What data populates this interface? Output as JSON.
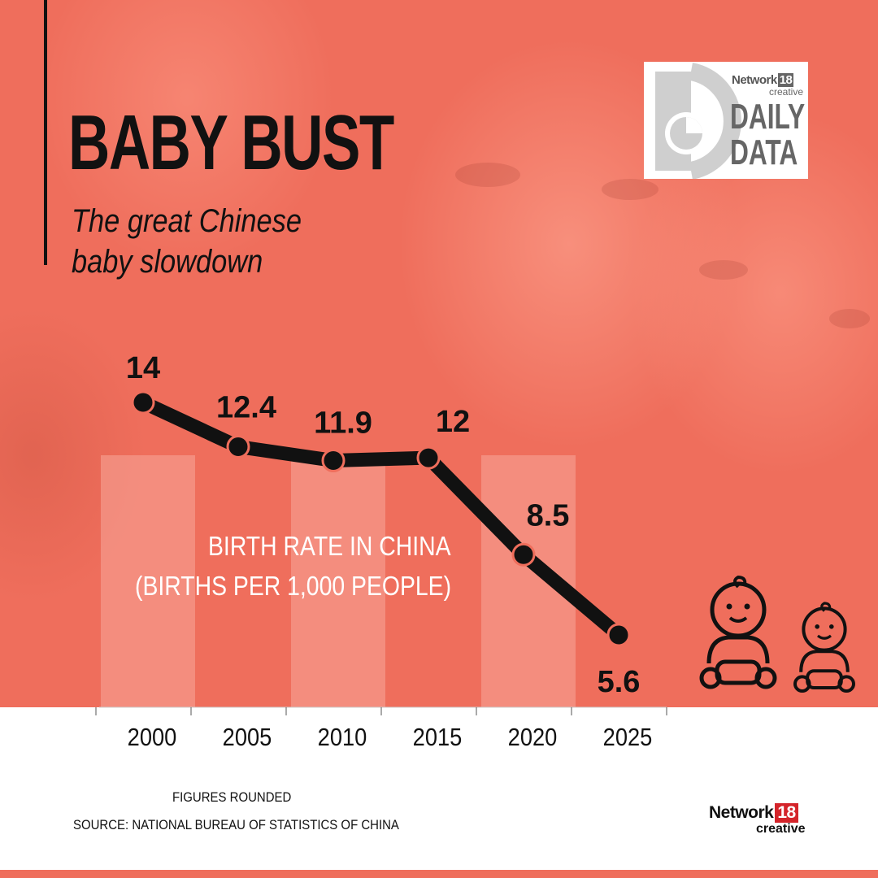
{
  "header": {
    "title": "BABY BUST",
    "subtitle_line1": "The great Chinese",
    "subtitle_line2": "baby slowdown"
  },
  "logo": {
    "network": "Network",
    "network_num": "18",
    "creative": "creative",
    "daily": "DAILY",
    "data": "DATA"
  },
  "chart_data": {
    "type": "line",
    "x": [
      2000,
      2005,
      2010,
      2015,
      2020,
      2025
    ],
    "x_labels": [
      "2000",
      "2005",
      "2010",
      "2015",
      "2020",
      "2025"
    ],
    "series": [
      {
        "values": [
          14,
          12.4,
          11.9,
          12,
          8.5,
          5.6
        ]
      }
    ],
    "value_labels": [
      "14",
      "12.4",
      "11.9",
      "12",
      "8.5",
      "5.6"
    ],
    "chart_label_line1": "BIRTH RATE IN CHINA",
    "chart_label_line2": "(BIRTHS PER 1,000 PEOPLE)",
    "ylim": [
      0,
      16
    ],
    "grid": false,
    "legend": "none",
    "line_color": "#111111",
    "column_band_color": "#f7a79a"
  },
  "footer": {
    "note": "FIGURES ROUNDED",
    "source": "SOURCE: NATIONAL BUREAU OF STATISTICS OF CHINA",
    "brand": "Network",
    "brand_num": "18",
    "brand_sub": "creative"
  },
  "icons": [
    "baby-icon",
    "baby-icon"
  ],
  "colors": {
    "background": "#ef6e5c",
    "text": "#111111",
    "brand_red": "#d4242a"
  }
}
